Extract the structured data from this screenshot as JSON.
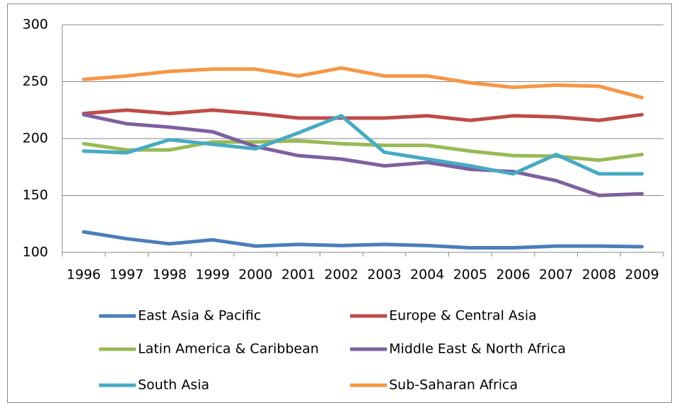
{
  "chart_data": {
    "type": "line",
    "categories": [
      "1996",
      "1997",
      "1998",
      "1999",
      "2000",
      "2001",
      "2002",
      "2003",
      "2004",
      "2005",
      "2006",
      "2007",
      "2008",
      "2009"
    ],
    "series": [
      {
        "name": "East Asia & Pacific",
        "color": "#4a7ebb",
        "values": [
          118,
          112,
          107.5,
          111,
          105.5,
          107,
          106,
          107,
          106,
          104,
          104,
          105.5,
          105.5,
          105
        ]
      },
      {
        "name": "Europe & Central Asia",
        "color": "#be4b48",
        "values": [
          222,
          225,
          222,
          225,
          222,
          218,
          218,
          218,
          220,
          216,
          220,
          219,
          216,
          221
        ]
      },
      {
        "name": "Latin America & Caribbean",
        "color": "#98b954",
        "values": [
          195.5,
          190,
          190,
          197,
          197,
          198,
          195.5,
          194,
          194,
          189,
          185,
          184.5,
          181,
          186
        ]
      },
      {
        "name": "Middle East & North Africa",
        "color": "#7d60a0",
        "values": [
          221,
          213,
          210,
          206,
          193,
          185,
          182,
          176,
          179,
          173,
          171,
          163,
          150,
          151.5
        ]
      },
      {
        "name": "South Asia",
        "color": "#46aac5",
        "values": [
          189,
          187.5,
          199,
          195,
          191,
          205,
          220,
          188,
          182,
          176,
          169,
          186,
          169,
          169
        ]
      },
      {
        "name": "Sub-Saharan Africa",
        "color": "#f79646",
        "values": [
          252,
          255,
          259,
          261,
          261,
          255,
          262,
          255,
          255,
          249,
          245,
          247,
          246,
          236
        ]
      }
    ],
    "ylim": [
      100,
      300
    ],
    "yticks": [
      100,
      150,
      200,
      250,
      300
    ],
    "grid": true,
    "legend": "bottom"
  }
}
